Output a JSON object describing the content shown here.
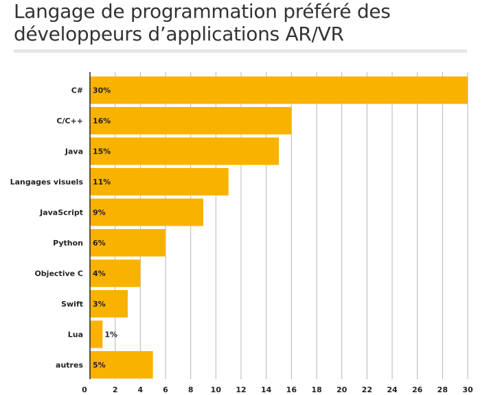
{
  "title": "Langage de programmation préféré des développeurs d’applications AR/VR",
  "colors": {
    "bar": "#f9b200",
    "grid": "#b5b5b5",
    "axis": "#222222",
    "text": "#222222",
    "title": "#333333"
  },
  "chart_data": {
    "type": "bar",
    "orientation": "horizontal",
    "title": "Langage de programmation préféré des développeurs d’applications AR/VR",
    "xlabel": "",
    "ylabel": "",
    "categories": [
      "C#",
      "C/C++",
      "Java",
      "Langages visuels",
      "JavaScript",
      "Python",
      "Objective C",
      "Swift",
      "Lua",
      "autres"
    ],
    "values": [
      30,
      16,
      15,
      11,
      9,
      6,
      4,
      3,
      1,
      5
    ],
    "value_labels": [
      "30%",
      "16%",
      "15%",
      "11%",
      "9%",
      "6%",
      "4%",
      "3%",
      "1%",
      "5%"
    ],
    "xlim": [
      0,
      30
    ],
    "x_ticks": [
      0,
      2,
      4,
      6,
      8,
      10,
      12,
      14,
      16,
      18,
      20,
      22,
      24,
      26,
      28,
      30
    ],
    "grid": true,
    "legend": "none"
  }
}
